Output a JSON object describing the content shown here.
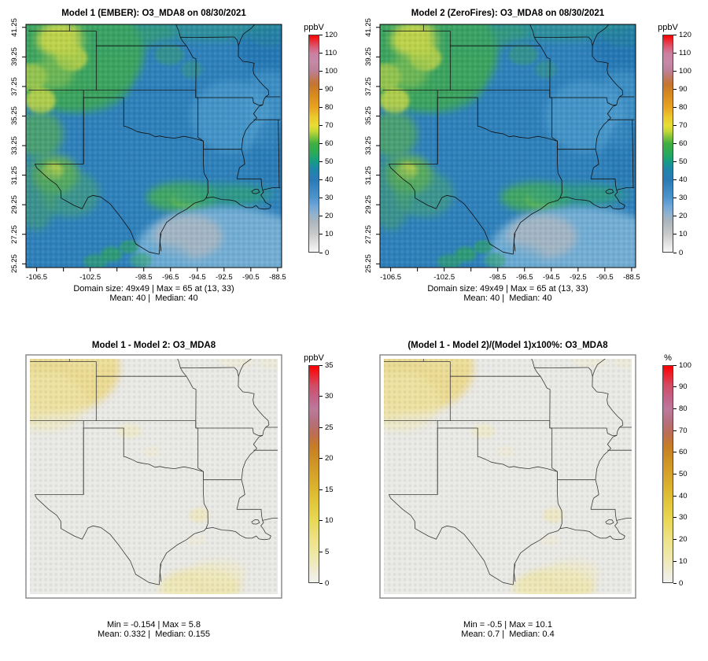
{
  "palettes": {
    "conc": [
      [
        0,
        "#f7f7f7"
      ],
      [
        0.083,
        "#c9c9c9"
      ],
      [
        0.142,
        "#aab4bc"
      ],
      [
        0.167,
        "#97b3cc"
      ],
      [
        0.208,
        "#72a8d8"
      ],
      [
        0.25,
        "#4d94cc"
      ],
      [
        0.333,
        "#2a7ab6"
      ],
      [
        0.383,
        "#1f86a8"
      ],
      [
        0.417,
        "#169d85"
      ],
      [
        0.45,
        "#27a95d"
      ],
      [
        0.5,
        "#3fae41"
      ],
      [
        0.533,
        "#8ac63a"
      ],
      [
        0.558,
        "#c6d836"
      ],
      [
        0.583,
        "#e8dd33"
      ],
      [
        0.625,
        "#ecc72d"
      ],
      [
        0.667,
        "#e8a322"
      ],
      [
        0.725,
        "#d88a1e"
      ],
      [
        0.775,
        "#c4742f"
      ],
      [
        0.833,
        "#bd7f93"
      ],
      [
        0.875,
        "#c589a9"
      ],
      [
        0.917,
        "#cd7f9e"
      ],
      [
        0.942,
        "#d95f7d"
      ],
      [
        0.967,
        "#e63a4a"
      ],
      [
        1,
        "#fa0000"
      ]
    ],
    "diff": [
      [
        0,
        "#f1f1ee"
      ],
      [
        0.057,
        "#efecd2"
      ],
      [
        0.114,
        "#efe9ad"
      ],
      [
        0.2,
        "#ede285"
      ],
      [
        0.286,
        "#e9d855"
      ],
      [
        0.371,
        "#e2c63a"
      ],
      [
        0.429,
        "#dcb52f"
      ],
      [
        0.514,
        "#d49f28"
      ],
      [
        0.571,
        "#cd8f24"
      ],
      [
        0.629,
        "#c67c26"
      ],
      [
        0.686,
        "#bc6e52"
      ],
      [
        0.743,
        "#b66f7e"
      ],
      [
        0.8,
        "#bc7a9c"
      ],
      [
        0.857,
        "#c46086"
      ],
      [
        0.914,
        "#d44a62"
      ],
      [
        0.943,
        "#e52f3d"
      ],
      [
        1,
        "#fb0000"
      ]
    ]
  },
  "chart_data": {
    "type": "heatmap",
    "description": "2x2 grid of gridded model maps over the south-central United States",
    "panels": [
      {
        "type": "heatmap",
        "title": "Model 1 (EMBER): O3_MDA8 on 08/30/2021",
        "field_style": "conc",
        "colorbar": {
          "label": "ppbV",
          "min": 0,
          "max": 120,
          "palette": "conc",
          "ticks": [
            "0",
            "10",
            "20",
            "30",
            "40",
            "50",
            "60",
            "70",
            "80",
            "90",
            "100",
            "110",
            "120"
          ],
          "tick_values": [
            0,
            10,
            20,
            30,
            40,
            50,
            60,
            70,
            80,
            90,
            100,
            110,
            120
          ]
        },
        "axes": {
          "lon_range": [
            -107.3,
            -88.2
          ],
          "lat_range": [
            25.0,
            41.45
          ],
          "x_tick_labels": [
            "-106.5",
            "-102.5",
            "-98.5",
            "-96.5",
            "-94.5",
            "-92.5",
            "-90.5",
            "-88.5"
          ],
          "x_tick_label_values": [
            -106.5,
            -102.5,
            -98.5,
            -96.5,
            -94.5,
            -92.5,
            -90.5,
            -88.5
          ],
          "x_tick_mark_values": [
            -106.5,
            -104.5,
            -102.5,
            -100.5,
            -98.5,
            -96.5,
            -94.5,
            -92.5,
            -90.5,
            -88.5
          ],
          "y_tick_labels": [
            "25.25",
            "27.25",
            "29.25",
            "31.25",
            "33.25",
            "35.25",
            "37.25",
            "39.25",
            "41.25"
          ],
          "y_tick_label_values": [
            25.25,
            27.25,
            29.25,
            31.25,
            33.25,
            35.25,
            37.25,
            39.25,
            41.25
          ]
        },
        "stats_lines": [
          "Domain size: 49x49 | Max = 65 at (13, 33)",
          "Mean: 40 |  Median: 40"
        ],
        "stats": {
          "domain_size": "49x49",
          "max": 65,
          "max_at": "(13, 33)",
          "mean": 40,
          "median": 40
        }
      },
      {
        "type": "heatmap",
        "title": "Model 2 (ZeroFires): O3_MDA8 on 08/30/2021",
        "field_style": "conc",
        "colorbar": {
          "label": "ppbV",
          "min": 0,
          "max": 120,
          "palette": "conc",
          "ticks": [
            "0",
            "10",
            "20",
            "30",
            "40",
            "50",
            "60",
            "70",
            "80",
            "90",
            "100",
            "110",
            "120"
          ],
          "tick_values": [
            0,
            10,
            20,
            30,
            40,
            50,
            60,
            70,
            80,
            90,
            100,
            110,
            120
          ]
        },
        "axes": {
          "lon_range": [
            -107.3,
            -88.2
          ],
          "lat_range": [
            25.0,
            41.45
          ],
          "x_tick_labels": [
            "-106.5",
            "-102.5",
            "-98.5",
            "-96.5",
            "-94.5",
            "-92.5",
            "-90.5",
            "-88.5"
          ],
          "x_tick_label_values": [
            -106.5,
            -102.5,
            -98.5,
            -96.5,
            -94.5,
            -92.5,
            -90.5,
            -88.5
          ],
          "x_tick_mark_values": [
            -106.5,
            -104.5,
            -102.5,
            -100.5,
            -98.5,
            -96.5,
            -94.5,
            -92.5,
            -90.5,
            -88.5
          ],
          "y_tick_labels": [
            "25.25",
            "27.25",
            "29.25",
            "31.25",
            "33.25",
            "35.25",
            "37.25",
            "39.25",
            "41.25"
          ],
          "y_tick_label_values": [
            25.25,
            27.25,
            29.25,
            31.25,
            33.25,
            35.25,
            37.25,
            39.25,
            41.25
          ]
        },
        "stats_lines": [
          "Domain size: 49x49 | Max = 65 at (13, 33)",
          "Mean: 40 |  Median: 40"
        ],
        "stats": {
          "domain_size": "49x49",
          "max": 65,
          "max_at": "(13, 33)",
          "mean": 40,
          "median": 40
        }
      },
      {
        "type": "heatmap",
        "title": "Model 1 - Model 2: O3_MDA8",
        "field_style": "diff",
        "colorbar": {
          "label": "ppbV",
          "min": 0,
          "max": 35,
          "palette": "diff",
          "ticks": [
            "0",
            "5",
            "10",
            "15",
            "20",
            "25",
            "30",
            "35"
          ],
          "tick_values": [
            0,
            5,
            10,
            15,
            20,
            25,
            30,
            35
          ]
        },
        "axes": {
          "lon_range": [
            -107.3,
            -88.2
          ],
          "lat_range": [
            25.0,
            41.45
          ]
        },
        "stats_lines": [
          "Min = -0.154 | Max = 5.8",
          "Mean: 0.332 |  Median: 0.155"
        ],
        "stats": {
          "min": -0.154,
          "max": 5.8,
          "mean": 0.332,
          "median": 0.155
        }
      },
      {
        "type": "heatmap",
        "title": "(Model 1 - Model 2)/(Model 1)x100%: O3_MDA8",
        "field_style": "diff",
        "colorbar": {
          "label": "%",
          "min": 0,
          "max": 100,
          "palette": "diff",
          "ticks": [
            "0",
            "10",
            "20",
            "30",
            "40",
            "50",
            "60",
            "70",
            "80",
            "90",
            "100"
          ],
          "tick_values": [
            0,
            10,
            20,
            30,
            40,
            50,
            60,
            70,
            80,
            90,
            100
          ]
        },
        "axes": {
          "lon_range": [
            -107.3,
            -88.2
          ],
          "lat_range": [
            25.0,
            41.45
          ]
        },
        "stats_lines": [
          "Min = -0.5 | Max = 10.1",
          "Mean: 0.7 |  Median: 0.4"
        ],
        "stats": {
          "min": -0.5,
          "max": 10.1,
          "mean": 0.7,
          "median": 0.4
        }
      }
    ]
  }
}
